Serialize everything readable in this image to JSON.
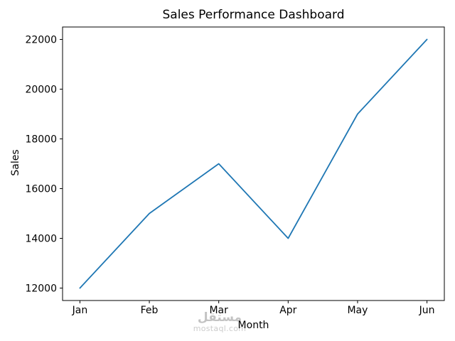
{
  "chart_data": {
    "type": "line",
    "title": "Sales Performance Dashboard",
    "xlabel": "Month",
    "ylabel": "Sales",
    "categories": [
      "Jan",
      "Feb",
      "Mar",
      "Apr",
      "May",
      "Jun"
    ],
    "values": [
      12000,
      15000,
      17000,
      14000,
      19000,
      22000
    ],
    "yticks": [
      12000,
      14000,
      16000,
      18000,
      20000,
      22000
    ],
    "xlim": [
      -0.25,
      5.25
    ],
    "ylim": [
      11500,
      22500
    ],
    "line_color": "#1f77b4",
    "axis_color": "#000000",
    "grid": false,
    "legend": "none"
  },
  "watermark": {
    "logo_text": "مستقل",
    "domain_text": "mostaql.com"
  }
}
